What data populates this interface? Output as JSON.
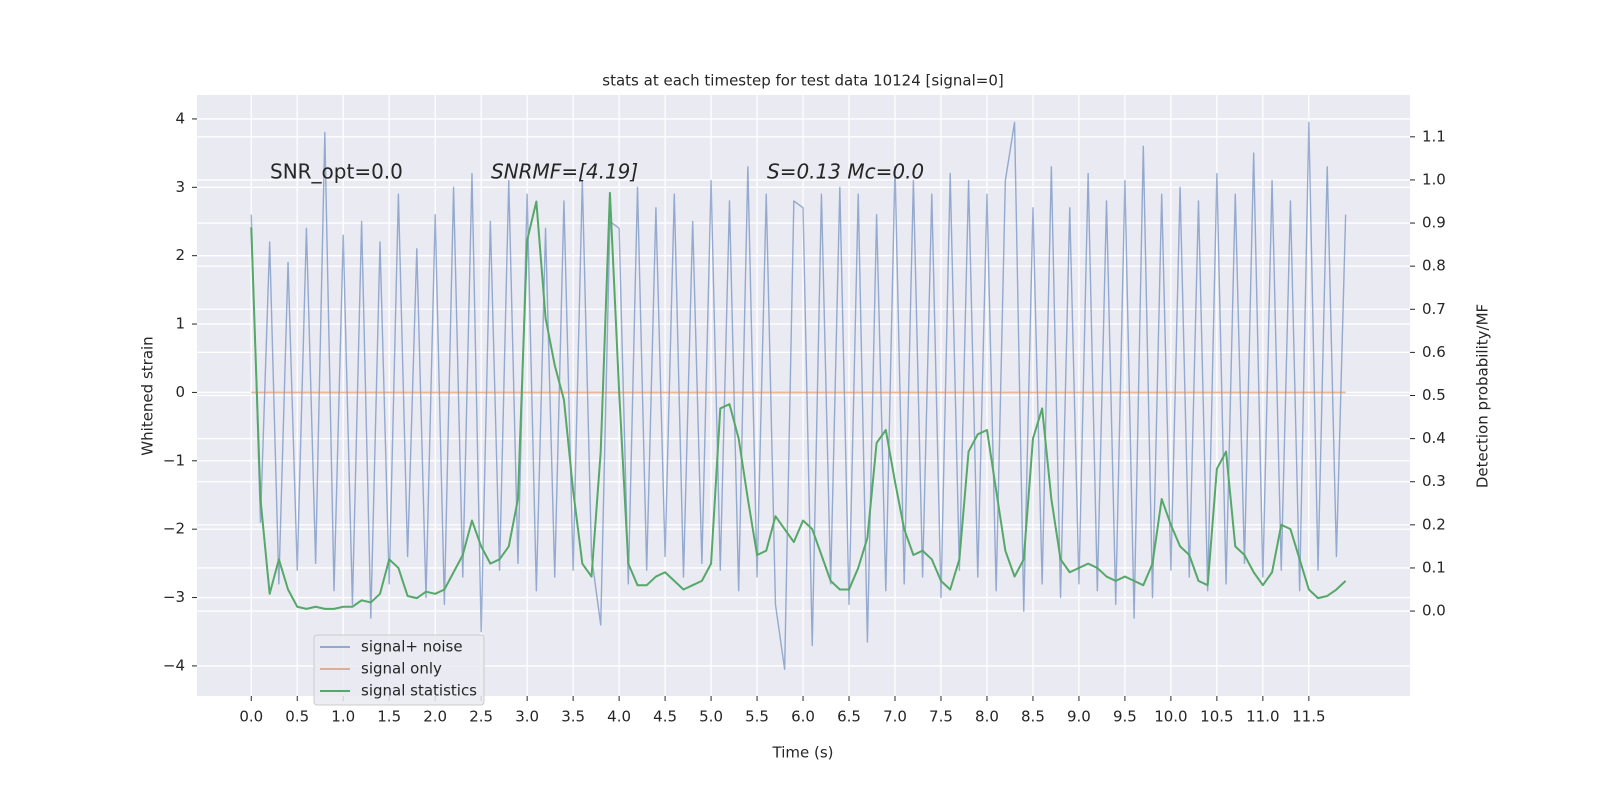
{
  "chart_data": {
    "type": "line",
    "title": "stats at each timestep for test data 10124 [signal=0]",
    "xlabel": "Time (s)",
    "ylabel": "Whitened strain",
    "y2label": "Detection probability/MF",
    "annotations": [
      "SNR_opt=0.0",
      "SNRMF=[4.19]",
      "S=0.13   Mc=0.0"
    ],
    "x": [
      0,
      0.1,
      0.2,
      0.3,
      0.4,
      0.5,
      0.6,
      0.7,
      0.8,
      0.9,
      1,
      1.1,
      1.2,
      1.3,
      1.4,
      1.5,
      1.6,
      1.7,
      1.8,
      1.9,
      2,
      2.1,
      2.2,
      2.3,
      2.4,
      2.5,
      2.6,
      2.7,
      2.8,
      2.9,
      3,
      3.1,
      3.2,
      3.3,
      3.4,
      3.5,
      3.6,
      3.7,
      3.8,
      3.9,
      4,
      4.1,
      4.2,
      4.3,
      4.4,
      4.5,
      4.6,
      4.7,
      4.8,
      4.9,
      5,
      5.1,
      5.2,
      5.3,
      5.4,
      5.5,
      5.6,
      5.7,
      5.8,
      5.9,
      6,
      6.1,
      6.2,
      6.3,
      6.4,
      6.5,
      6.6,
      6.7,
      6.8,
      6.9,
      7,
      7.1,
      7.2,
      7.3,
      7.4,
      7.5,
      7.6,
      7.7,
      7.8,
      7.9,
      8,
      8.1,
      8.2,
      8.3,
      8.4,
      8.5,
      8.6,
      8.7,
      8.8,
      8.9,
      9,
      9.1,
      9.2,
      9.3,
      9.4,
      9.5,
      9.6,
      9.7,
      9.8,
      9.9,
      10,
      10.1,
      10.2,
      10.3,
      10.4,
      10.5,
      10.6,
      10.7,
      10.8,
      10.9,
      11,
      11.1,
      11.2,
      11.3,
      11.4,
      11.5,
      11.6,
      11.7,
      11.8,
      11.9
    ],
    "series": [
      {
        "name": "signal+ noise",
        "color": "#4c72b0",
        "values": [
          2.6,
          -1.9,
          2.2,
          -2.8,
          1.9,
          -2.6,
          2.4,
          -2.5,
          3.8,
          -2.9,
          2.3,
          -3.1,
          2.5,
          -3.3,
          2.2,
          -2.8,
          2.9,
          -2.4,
          2.1,
          -3.0,
          2.6,
          -3.1,
          3.0,
          -2.7,
          3.2,
          -3.5,
          2.5,
          -2.6,
          3.1,
          -2.5,
          2.9,
          -2.9,
          2.4,
          -2.7,
          2.8,
          -2.6,
          3.1,
          -2.4,
          -3.4,
          2.5,
          2.4,
          -2.8,
          3.0,
          -2.6,
          2.7,
          -2.4,
          2.9,
          -2.7,
          2.5,
          -2.5,
          3.1,
          -2.6,
          2.8,
          -2.9,
          3.3,
          -2.7,
          2.9,
          -3.1,
          -4.05,
          2.8,
          2.7,
          -3.7,
          2.9,
          -2.8,
          3.0,
          -3.1,
          2.9,
          -3.65,
          2.6,
          -2.9,
          3.3,
          -2.8,
          3.1,
          -2.7,
          2.9,
          -3.0,
          3.2,
          -2.6,
          3.1,
          -2.7,
          2.9,
          -2.9,
          3.1,
          3.95,
          -3.2,
          2.7,
          -2.8,
          3.3,
          -3.0,
          2.7,
          -2.8,
          3.2,
          -2.9,
          2.8,
          -3.1,
          3.1,
          -3.3,
          3.6,
          -3.0,
          2.9,
          -2.6,
          3.0,
          -2.7,
          2.8,
          -2.9,
          3.2,
          -2.8,
          2.9,
          -2.5,
          3.5,
          -2.7,
          3.1,
          -2.6,
          2.8,
          -2.9,
          3.95,
          -2.6,
          3.3,
          -2.4,
          2.6
        ]
      },
      {
        "name": "signal only",
        "color": "#dd8452",
        "values": [
          0,
          0,
          0,
          0,
          0,
          0,
          0,
          0,
          0,
          0,
          0,
          0,
          0,
          0,
          0,
          0,
          0,
          0,
          0,
          0,
          0,
          0,
          0,
          0,
          0,
          0,
          0,
          0,
          0,
          0,
          0,
          0,
          0,
          0,
          0,
          0,
          0,
          0,
          0,
          0,
          0,
          0,
          0,
          0,
          0,
          0,
          0,
          0,
          0,
          0,
          0,
          0,
          0,
          0,
          0,
          0,
          0,
          0,
          0,
          0,
          0,
          0,
          0,
          0,
          0,
          0,
          0,
          0,
          0,
          0,
          0,
          0,
          0,
          0,
          0,
          0,
          0,
          0,
          0,
          0,
          0,
          0,
          0,
          0,
          0,
          0,
          0,
          0,
          0,
          0,
          0,
          0,
          0,
          0,
          0,
          0,
          0,
          0,
          0,
          0,
          0,
          0,
          0,
          0,
          0,
          0,
          0,
          0,
          0,
          0,
          0,
          0,
          0,
          0,
          0,
          0,
          0,
          0,
          0,
          0
        ]
      },
      {
        "name": "signal statistics",
        "color": "#55a868",
        "axis": "y2",
        "values": [
          0.89,
          0.26,
          0.04,
          0.12,
          0.05,
          0.01,
          0.005,
          0.01,
          0.005,
          0.005,
          0.01,
          0.01,
          0.025,
          0.02,
          0.04,
          0.12,
          0.1,
          0.035,
          0.03,
          0.045,
          0.04,
          0.05,
          0.09,
          0.13,
          0.21,
          0.15,
          0.11,
          0.12,
          0.15,
          0.26,
          0.86,
          0.95,
          0.68,
          0.57,
          0.49,
          0.28,
          0.11,
          0.08,
          0.37,
          0.97,
          0.51,
          0.11,
          0.06,
          0.06,
          0.08,
          0.09,
          0.07,
          0.05,
          0.06,
          0.07,
          0.11,
          0.47,
          0.48,
          0.4,
          0.26,
          0.13,
          0.14,
          0.22,
          0.19,
          0.16,
          0.21,
          0.19,
          0.13,
          0.07,
          0.05,
          0.05,
          0.1,
          0.17,
          0.39,
          0.42,
          0.3,
          0.19,
          0.13,
          0.14,
          0.12,
          0.07,
          0.05,
          0.12,
          0.37,
          0.41,
          0.42,
          0.28,
          0.14,
          0.08,
          0.12,
          0.4,
          0.47,
          0.26,
          0.12,
          0.09,
          0.1,
          0.11,
          0.1,
          0.08,
          0.07,
          0.08,
          0.07,
          0.06,
          0.11,
          0.26,
          0.2,
          0.15,
          0.13,
          0.07,
          0.06,
          0.33,
          0.37,
          0.15,
          0.13,
          0.09,
          0.06,
          0.09,
          0.2,
          0.19,
          0.12,
          0.05,
          0.03,
          0.035,
          0.05,
          0.07
        ]
      }
    ],
    "xlim": [
      -0.59,
      12.6
    ],
    "ylim": [
      -4.44,
      4.35
    ],
    "y2lim": [
      -0.197,
      1.197
    ],
    "xticks": [
      {
        "value": 0,
        "label": "0.0"
      },
      {
        "value": 0.5,
        "label": "0.5"
      },
      {
        "value": 1,
        "label": "1.0"
      },
      {
        "value": 1.5,
        "label": "1.5"
      },
      {
        "value": 2,
        "label": "2.0"
      },
      {
        "value": 2.5,
        "label": "2.5"
      },
      {
        "value": 3,
        "label": "3.0"
      },
      {
        "value": 3.5,
        "label": "3.5"
      },
      {
        "value": 4,
        "label": "4.0"
      },
      {
        "value": 4.5,
        "label": "4.5"
      },
      {
        "value": 5,
        "label": "5.0"
      },
      {
        "value": 5.5,
        "label": "5.5"
      },
      {
        "value": 6,
        "label": "6.0"
      },
      {
        "value": 6.5,
        "label": "6.5"
      },
      {
        "value": 7,
        "label": "7.0"
      },
      {
        "value": 7.5,
        "label": "7.5"
      },
      {
        "value": 8,
        "label": "8.0"
      },
      {
        "value": 8.5,
        "label": "8.5"
      },
      {
        "value": 9,
        "label": "9.0"
      },
      {
        "value": 9.5,
        "label": "9.5"
      },
      {
        "value": 10,
        "label": "10.0"
      },
      {
        "value": 10.5,
        "label": "10.5"
      },
      {
        "value": 11,
        "label": "11.0"
      },
      {
        "value": 11.5,
        "label": "11.5"
      }
    ],
    "yticks": [
      {
        "value": -4,
        "label": "−4"
      },
      {
        "value": -3,
        "label": "−3"
      },
      {
        "value": -2,
        "label": "−2"
      },
      {
        "value": -1,
        "label": "−1"
      },
      0,
      1,
      2,
      3,
      4
    ],
    "y2ticks": [
      {
        "value": 0,
        "label": "0.0"
      },
      {
        "value": 0.1,
        "label": "0.1"
      },
      {
        "value": 0.2,
        "label": "0.2"
      },
      {
        "value": 0.3,
        "label": "0.3"
      },
      {
        "value": 0.4,
        "label": "0.4"
      },
      {
        "value": 0.5,
        "label": "0.5"
      },
      {
        "value": 0.6,
        "label": "0.6"
      },
      {
        "value": 0.7,
        "label": "0.7"
      },
      {
        "value": 0.8,
        "label": "0.8"
      },
      {
        "value": 0.9,
        "label": "0.9"
      },
      {
        "value": 1.0,
        "label": "1.0"
      },
      {
        "value": 1.1,
        "label": "1.1"
      }
    ],
    "grid": true,
    "legend": "lower left"
  }
}
